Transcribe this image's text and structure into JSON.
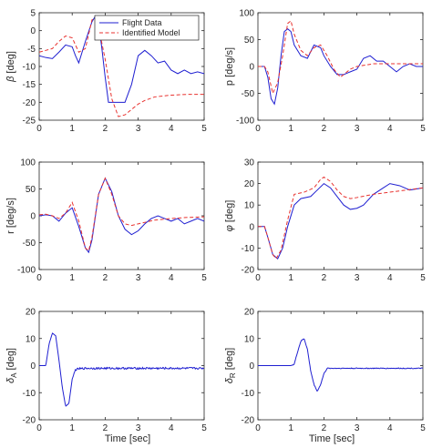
{
  "figure": {
    "xlabel": "Time [sec]",
    "colors": {
      "flight": "#1f1fd1",
      "model": "#e8322f"
    }
  },
  "chart_data": [
    {
      "type": "line",
      "ylabel": "β [deg]",
      "ylabel_main": "β",
      "ylabel_unit": "[deg]",
      "xlim": [
        0,
        5
      ],
      "ylim": [
        -25,
        5
      ],
      "xticks": [
        0,
        1,
        2,
        3,
        4,
        5
      ],
      "yticks": [
        5,
        0,
        -5,
        -10,
        -15,
        -20,
        -25
      ],
      "legend": {
        "position": "top-right",
        "entries": [
          "Flight Data",
          "Identified Model"
        ]
      },
      "series": [
        {
          "name": "Flight Data",
          "style": "solid",
          "x": [
            0,
            0.2,
            0.4,
            0.6,
            0.8,
            1.0,
            1.1,
            1.2,
            1.4,
            1.6,
            1.7,
            1.8,
            1.9,
            2.0,
            2.1,
            2.2,
            2.4,
            2.6,
            2.8,
            3.0,
            3.2,
            3.4,
            3.6,
            3.8,
            4.0,
            4.2,
            4.4,
            4.6,
            4.8,
            5.0
          ],
          "y": [
            -7,
            -7.5,
            -7.8,
            -6,
            -4,
            -4.5,
            -7,
            -9,
            -3,
            2.5,
            4,
            2,
            -5,
            -13,
            -20,
            -20,
            -20,
            -20,
            -15,
            -7,
            -5.5,
            -7,
            -9,
            -8.5,
            -11,
            -12,
            -11,
            -12,
            -11.5,
            -12
          ]
        },
        {
          "name": "Identified Model",
          "style": "dashed",
          "x": [
            0,
            0.2,
            0.4,
            0.6,
            0.8,
            1.0,
            1.2,
            1.4,
            1.6,
            1.7,
            1.8,
            2.0,
            2.2,
            2.4,
            2.6,
            2.8,
            3.0,
            3.2,
            3.5,
            4.0,
            4.5,
            5.0
          ],
          "y": [
            -6,
            -5.5,
            -5,
            -3,
            -1.5,
            -2,
            -6,
            -5,
            3,
            3.5,
            1,
            -8,
            -19,
            -24,
            -23.5,
            -22,
            -20.5,
            -19.5,
            -18.5,
            -18,
            -17.8,
            -17.8
          ]
        }
      ]
    },
    {
      "type": "line",
      "ylabel": "p [deg/s]",
      "ylabel_main": "p",
      "ylabel_unit": "[deg/s]",
      "xlim": [
        0,
        5
      ],
      "ylim": [
        -100,
        100
      ],
      "xticks": [
        0,
        1,
        2,
        3,
        4,
        5
      ],
      "yticks": [
        100,
        50,
        0,
        -50,
        -100
      ],
      "series": [
        {
          "name": "Flight Data",
          "style": "solid",
          "x": [
            0,
            0.2,
            0.3,
            0.4,
            0.5,
            0.6,
            0.7,
            0.8,
            0.9,
            1.0,
            1.1,
            1.3,
            1.5,
            1.7,
            1.9,
            2.0,
            2.2,
            2.4,
            2.6,
            2.8,
            3.0,
            3.2,
            3.4,
            3.6,
            3.8,
            4.0,
            4.2,
            4.4,
            4.6,
            4.8,
            5.0
          ],
          "y": [
            0,
            0,
            -20,
            -60,
            -70,
            -40,
            20,
            65,
            70,
            65,
            40,
            20,
            15,
            40,
            35,
            20,
            0,
            -15,
            -15,
            -10,
            -5,
            15,
            20,
            10,
            10,
            0,
            -10,
            0,
            5,
            0,
            0
          ]
        },
        {
          "name": "Identified Model",
          "style": "dashed",
          "x": [
            0,
            0.2,
            0.3,
            0.45,
            0.6,
            0.75,
            0.9,
            1.0,
            1.1,
            1.3,
            1.5,
            1.7,
            1.9,
            2.1,
            2.3,
            2.5,
            2.8,
            3.0,
            3.5,
            4.0,
            4.5,
            5.0
          ],
          "y": [
            0,
            0,
            -10,
            -50,
            -30,
            20,
            80,
            85,
            60,
            30,
            20,
            35,
            40,
            20,
            -5,
            -20,
            -5,
            0,
            5,
            5,
            5,
            5
          ]
        }
      ]
    },
    {
      "type": "line",
      "ylabel": "r [deg/s]",
      "ylabel_main": "r",
      "ylabel_unit": "[deg/s]",
      "xlim": [
        0,
        5
      ],
      "ylim": [
        -100,
        100
      ],
      "xticks": [
        0,
        1,
        2,
        3,
        4,
        5
      ],
      "yticks": [
        100,
        50,
        0,
        -50,
        -100
      ],
      "series": [
        {
          "name": "Flight Data",
          "style": "solid",
          "x": [
            0,
            0.2,
            0.4,
            0.6,
            0.8,
            1.0,
            1.2,
            1.4,
            1.5,
            1.6,
            1.8,
            2.0,
            2.2,
            2.4,
            2.6,
            2.8,
            3.0,
            3.2,
            3.4,
            3.6,
            3.8,
            4.0,
            4.2,
            4.4,
            4.6,
            4.8,
            5.0
          ],
          "y": [
            0,
            2,
            0,
            -10,
            5,
            15,
            -20,
            -60,
            -68,
            -45,
            40,
            70,
            45,
            0,
            -25,
            -35,
            -28,
            -15,
            -5,
            0,
            -5,
            -10,
            -5,
            -15,
            -10,
            -5,
            -10
          ]
        },
        {
          "name": "Identified Model",
          "style": "dashed",
          "x": [
            0,
            0.2,
            0.4,
            0.6,
            0.8,
            1.0,
            1.2,
            1.4,
            1.5,
            1.6,
            1.8,
            2.0,
            2.2,
            2.4,
            2.6,
            2.8,
            3.0,
            3.5,
            4.0,
            4.5,
            5.0
          ],
          "y": [
            2,
            3,
            0,
            -5,
            5,
            25,
            -10,
            -60,
            -65,
            -40,
            40,
            70,
            40,
            0,
            -15,
            -18,
            -15,
            -8,
            -5,
            -3,
            -2
          ]
        }
      ]
    },
    {
      "type": "line",
      "ylabel": "φ [deg]",
      "ylabel_main": "φ",
      "ylabel_unit": "[deg]",
      "xlim": [
        0,
        5
      ],
      "ylim": [
        -20,
        30
      ],
      "xticks": [
        0,
        1,
        2,
        3,
        4,
        5
      ],
      "yticks": [
        30,
        20,
        10,
        0,
        -10,
        -20
      ],
      "series": [
        {
          "name": "Flight Data",
          "style": "solid",
          "x": [
            0,
            0.2,
            0.3,
            0.45,
            0.6,
            0.75,
            0.9,
            1.1,
            1.3,
            1.6,
            1.8,
            2.0,
            2.2,
            2.4,
            2.6,
            2.8,
            3.0,
            3.2,
            3.5,
            3.8,
            4.0,
            4.3,
            4.6,
            5.0
          ],
          "y": [
            0,
            0,
            -5,
            -13,
            -15,
            -10,
            0,
            10,
            13,
            14,
            17,
            20,
            18,
            14,
            10,
            8,
            8.5,
            10,
            15,
            18,
            20,
            19,
            17,
            18
          ]
        },
        {
          "name": "Identified Model",
          "style": "dashed",
          "x": [
            0,
            0.2,
            0.3,
            0.45,
            0.55,
            0.7,
            0.9,
            1.1,
            1.4,
            1.7,
            1.9,
            2.0,
            2.2,
            2.4,
            2.6,
            2.8,
            3.0,
            3.5,
            4.0,
            4.5,
            5.0
          ],
          "y": [
            0,
            0,
            -5,
            -13,
            -15,
            -11,
            3,
            15,
            16,
            18,
            22,
            23,
            21,
            17,
            14,
            13,
            13.5,
            15,
            16,
            17,
            18
          ]
        }
      ]
    },
    {
      "type": "line",
      "ylabel": "δA [deg]",
      "ylabel_main": "δ",
      "ylabel_sub": "A",
      "ylabel_unit": "[deg]",
      "xlim": [
        0,
        5
      ],
      "ylim": [
        -20,
        20
      ],
      "xticks": [
        0,
        1,
        2,
        3,
        4,
        5
      ],
      "yticks": [
        20,
        10,
        0,
        -10,
        -20
      ],
      "series": [
        {
          "name": "Flight Data",
          "style": "solid",
          "noise": 0.35,
          "x": [
            0,
            0.2,
            0.3,
            0.4,
            0.5,
            0.6,
            0.7,
            0.8,
            0.9,
            1.0,
            1.1,
            1.2,
            1.4,
            2.0,
            3.0,
            4.0,
            5.0
          ],
          "y": [
            0,
            0,
            8,
            12,
            11,
            2,
            -8,
            -15,
            -14,
            -5,
            -1.5,
            -1.2,
            -1,
            -1,
            -1,
            -1,
            -1
          ]
        }
      ]
    },
    {
      "type": "line",
      "ylabel": "δR [deg]",
      "ylabel_main": "δ",
      "ylabel_sub": "R",
      "ylabel_unit": "[deg]",
      "xlim": [
        0,
        5
      ],
      "ylim": [
        -20,
        20
      ],
      "xticks": [
        0,
        1,
        2,
        3,
        4,
        5
      ],
      "yticks": [
        20,
        10,
        0,
        -10,
        -20
      ],
      "series": [
        {
          "name": "Flight Data",
          "style": "solid",
          "noise": 0.15,
          "x": [
            0,
            0.5,
            1.0,
            1.1,
            1.2,
            1.3,
            1.4,
            1.5,
            1.6,
            1.7,
            1.8,
            1.9,
            2.0,
            2.1,
            3.0,
            4.0,
            5.0
          ],
          "y": [
            0,
            0,
            0,
            0.5,
            5,
            9,
            10,
            6,
            -2,
            -7,
            -9.5,
            -7,
            -3,
            -1,
            -1,
            -1,
            -1
          ]
        }
      ]
    }
  ]
}
